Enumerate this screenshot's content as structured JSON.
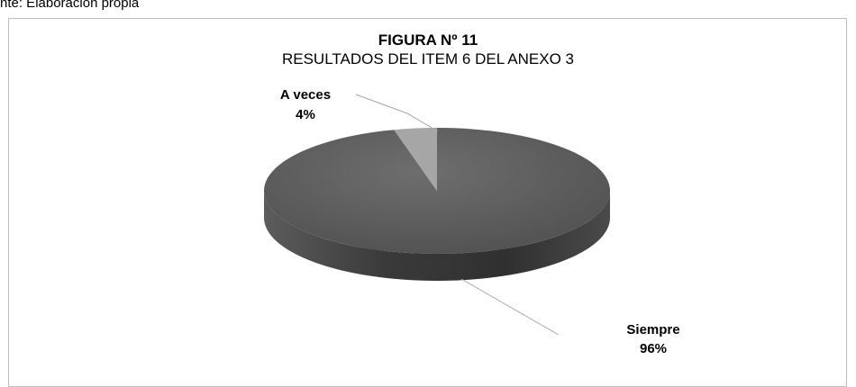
{
  "source_note": "nte: Elaboración propia",
  "chart_data": {
    "type": "pie",
    "title": "FIGURA Nº 11",
    "subtitle": "RESULTADOS DEL ITEM 6 DEL ANEXO 3",
    "slices": [
      {
        "label": "Siempre",
        "value": 96,
        "display": "96%",
        "color": "#595959"
      },
      {
        "label": "A veces",
        "value": 4,
        "display": "4%",
        "color": "#a6a6a6"
      }
    ],
    "style": "3d"
  }
}
